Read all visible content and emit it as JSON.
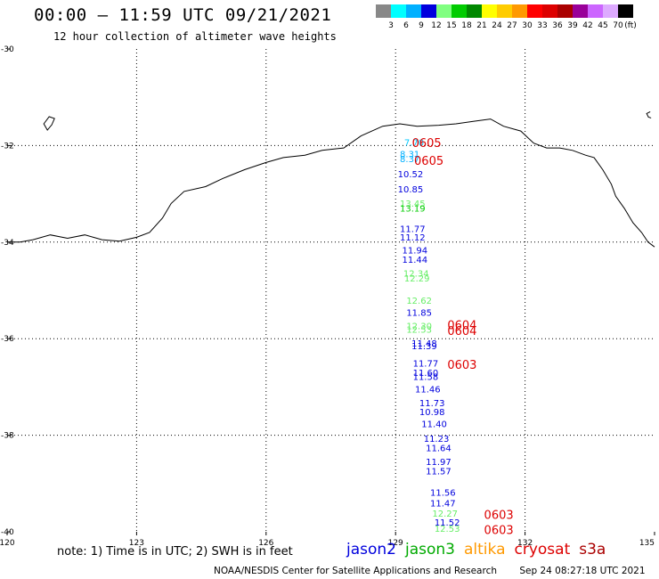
{
  "header": {
    "title": "00:00 – 11:59 UTC 09/21/2021",
    "subtitle": "12 hour collection of altimeter wave heights"
  },
  "legend": {
    "colors": [
      "#888888",
      "#00ffff",
      "#00b0ff",
      "#0000dd",
      "#80ff80",
      "#00cc00",
      "#008800",
      "#ffff00",
      "#ffcc00",
      "#ff9900",
      "#ff0000",
      "#dd0000",
      "#aa0000",
      "#990099",
      "#cc66ff",
      "#ddaaff",
      "#000000"
    ],
    "labels": [
      "3",
      "6",
      "9",
      "12",
      "15",
      "18",
      "21",
      "24",
      "27",
      "30",
      "33",
      "36",
      "39",
      "42",
      "45",
      "70",
      "(ft)"
    ]
  },
  "axes": {
    "x_labels": [
      "120",
      "123",
      "126",
      "129",
      "132",
      "135"
    ],
    "y_labels": [
      "-30",
      "-32",
      "-34",
      "-36",
      "-38",
      "-40"
    ]
  },
  "observations": [
    {
      "lon": 129.2,
      "lat": -32.0,
      "text": "7.70",
      "color": "#00c8ff"
    },
    {
      "lon": 129.1,
      "lat": -32.24,
      "text": "8.31",
      "color": "#00b0ff"
    },
    {
      "lon": 129.1,
      "lat": -32.34,
      "text": "8.37",
      "color": "#00b0ff"
    },
    {
      "lon": 129.05,
      "lat": -32.66,
      "text": "10.52",
      "color": "#0000dd"
    },
    {
      "lon": 129.05,
      "lat": -32.97,
      "text": "10.85",
      "color": "#0000dd"
    },
    {
      "lon": 129.1,
      "lat": -33.27,
      "text": "13.45",
      "color": "#66ee66"
    },
    {
      "lon": 129.1,
      "lat": -33.37,
      "text": "13.19",
      "color": "#00cc00"
    },
    {
      "lon": 129.1,
      "lat": -33.79,
      "text": "11.77",
      "color": "#0000dd"
    },
    {
      "lon": 129.1,
      "lat": -33.97,
      "text": "11.12",
      "color": "#0000dd"
    },
    {
      "lon": 129.15,
      "lat": -34.23,
      "text": "11.94",
      "color": "#0000dd"
    },
    {
      "lon": 129.15,
      "lat": -34.43,
      "text": "11.44",
      "color": "#0000dd"
    },
    {
      "lon": 129.18,
      "lat": -34.71,
      "text": "12.34",
      "color": "#66ee66"
    },
    {
      "lon": 129.2,
      "lat": -34.82,
      "text": "12.29",
      "color": "#66ee66"
    },
    {
      "lon": 129.25,
      "lat": -35.28,
      "text": "12.62",
      "color": "#66ee66"
    },
    {
      "lon": 129.25,
      "lat": -35.53,
      "text": "11.85",
      "color": "#0000dd"
    },
    {
      "lon": 129.25,
      "lat": -35.8,
      "text": "12.30",
      "color": "#66ee66"
    },
    {
      "lon": 129.25,
      "lat": -35.88,
      "text": "12.53",
      "color": "#66ee66"
    },
    {
      "lon": 129.37,
      "lat": -36.16,
      "text": "11.48",
      "color": "#0000dd"
    },
    {
      "lon": 129.37,
      "lat": -36.22,
      "text": "11.39",
      "color": "#0000dd"
    },
    {
      "lon": 129.4,
      "lat": -36.58,
      "text": "11.77",
      "color": "#0000dd"
    },
    {
      "lon": 129.4,
      "lat": -36.77,
      "text": "11.60",
      "color": "#0000dd"
    },
    {
      "lon": 129.4,
      "lat": -36.85,
      "text": "11.58",
      "color": "#0000dd"
    },
    {
      "lon": 129.45,
      "lat": -37.11,
      "text": "11.46",
      "color": "#0000dd"
    },
    {
      "lon": 129.55,
      "lat": -37.4,
      "text": "11.73",
      "color": "#0000dd"
    },
    {
      "lon": 129.55,
      "lat": -37.58,
      "text": "10.98",
      "color": "#0000dd"
    },
    {
      "lon": 129.6,
      "lat": -37.83,
      "text": "11.40",
      "color": "#0000dd"
    },
    {
      "lon": 129.65,
      "lat": -38.14,
      "text": "11.23",
      "color": "#0000dd"
    },
    {
      "lon": 129.7,
      "lat": -38.33,
      "text": "11.64",
      "color": "#0000dd"
    },
    {
      "lon": 129.7,
      "lat": -38.62,
      "text": "11.97",
      "color": "#0000dd"
    },
    {
      "lon": 129.7,
      "lat": -38.81,
      "text": "11.57",
      "color": "#0000dd"
    },
    {
      "lon": 129.8,
      "lat": -39.25,
      "text": "11.56",
      "color": "#0000dd"
    },
    {
      "lon": 129.8,
      "lat": -39.47,
      "text": "11.47",
      "color": "#0000dd"
    },
    {
      "lon": 129.85,
      "lat": -39.69,
      "text": "12.27",
      "color": "#66ee66"
    },
    {
      "lon": 129.9,
      "lat": -39.87,
      "text": "11.52",
      "color": "#0000dd"
    },
    {
      "lon": 129.9,
      "lat": -40.0,
      "text": "12.53",
      "color": "#66ee66"
    }
  ],
  "pass_times": [
    {
      "lon": 129.38,
      "lat": -32.03,
      "text": "0605"
    },
    {
      "lon": 129.43,
      "lat": -32.4,
      "text": "0605"
    },
    {
      "lon": 130.2,
      "lat": -35.8,
      "text": "0604"
    },
    {
      "lon": 130.2,
      "lat": -35.92,
      "text": "0604"
    },
    {
      "lon": 130.2,
      "lat": -36.62,
      "text": "0603"
    },
    {
      "lon": 131.05,
      "lat": -39.73,
      "text": "0603"
    },
    {
      "lon": 131.05,
      "lat": -40.05,
      "text": "0603"
    }
  ],
  "note": "note:  1) Time is in UTC;  2) SWH is in feet",
  "satellites": [
    {
      "name": "jason2",
      "color": "#0000dd"
    },
    {
      "name": "jason3",
      "color": "#00aa00"
    },
    {
      "name": "altika",
      "color": "#ff9900"
    },
    {
      "name": "cryosat",
      "color": "#dd0000"
    },
    {
      "name": "s3a",
      "color": "#aa0000"
    }
  ],
  "footer": {
    "credit": "NOAA/NESDIS Center for Satellite Applications and Research",
    "timestamp": "Sep 24 08:27:18 UTC 2021"
  }
}
